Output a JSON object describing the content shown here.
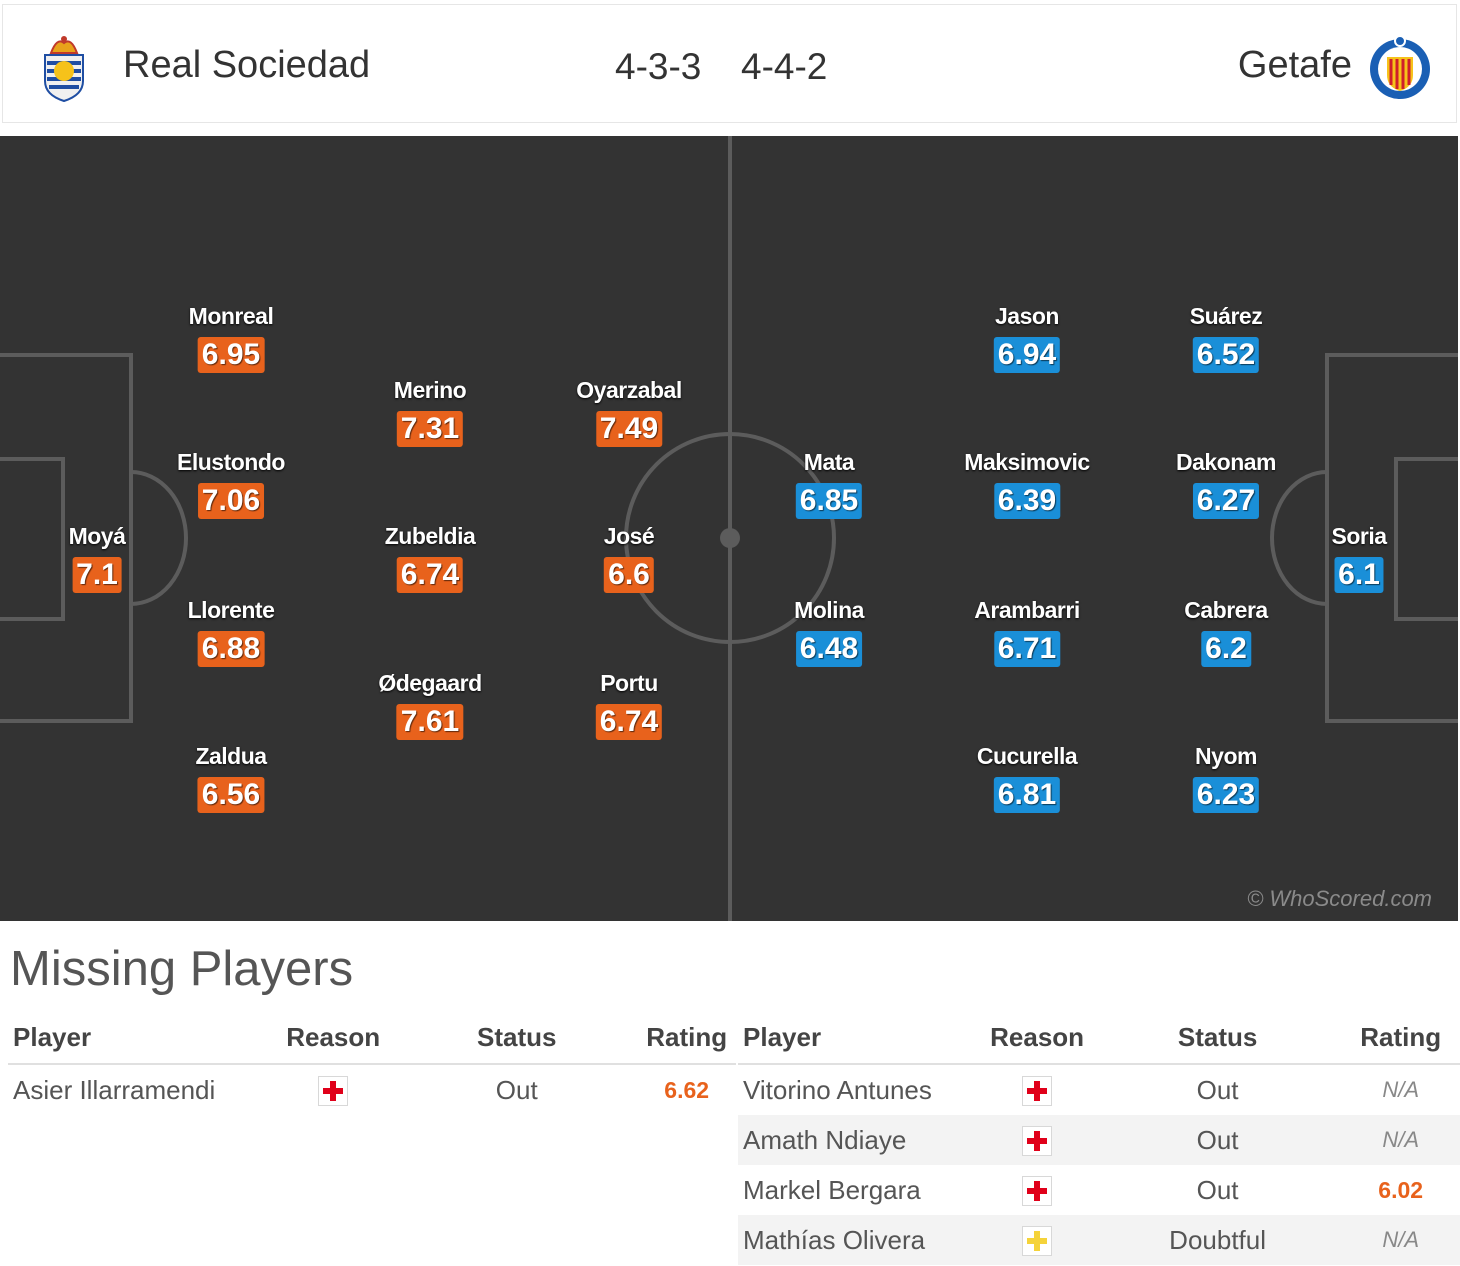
{
  "header": {
    "home_team": "Real Sociedad",
    "away_team": "Getafe",
    "home_formation": "4-3-3",
    "away_formation": "4-4-2",
    "home_crest_icon": "real-sociedad-crest-icon",
    "away_crest_icon": "getafe-crest-icon"
  },
  "colors": {
    "home": "#e8621c",
    "away": "#1a8fd8",
    "pitch": "#333333",
    "injury": "#e0001a",
    "doubtful": "#f5d33a"
  },
  "home_players": [
    {
      "name": "Monreal",
      "rating": "6.95"
    },
    {
      "name": "Elustondo",
      "rating": "7.06"
    },
    {
      "name": "Llorente",
      "rating": "6.88"
    },
    {
      "name": "Zaldua",
      "rating": "6.56"
    },
    {
      "name": "Moyá",
      "rating": "7.1"
    },
    {
      "name": "Merino",
      "rating": "7.31"
    },
    {
      "name": "Zubeldia",
      "rating": "6.74"
    },
    {
      "name": "Ødegaard",
      "rating": "7.61"
    },
    {
      "name": "Oyarzabal",
      "rating": "7.49"
    },
    {
      "name": "José",
      "rating": "6.6"
    },
    {
      "name": "Portu",
      "rating": "6.74"
    }
  ],
  "away_players": [
    {
      "name": "Jason",
      "rating": "6.94"
    },
    {
      "name": "Suárez",
      "rating": "6.52"
    },
    {
      "name": "Mata",
      "rating": "6.85"
    },
    {
      "name": "Maksimovic",
      "rating": "6.39"
    },
    {
      "name": "Dakonam",
      "rating": "6.27"
    },
    {
      "name": "Molina",
      "rating": "6.48"
    },
    {
      "name": "Arambarri",
      "rating": "6.71"
    },
    {
      "name": "Cabrera",
      "rating": "6.2"
    },
    {
      "name": "Cucurella",
      "rating": "6.81"
    },
    {
      "name": "Nyom",
      "rating": "6.23"
    },
    {
      "name": "Soria",
      "rating": "6.1"
    }
  ],
  "watermark": "© WhoScored.com",
  "missing": {
    "title": "Missing Players",
    "headers": {
      "player": "Player",
      "reason": "Reason",
      "status": "Status",
      "rating": "Rating"
    },
    "home": [
      {
        "player": "Asier Illarramendi",
        "reason_icon": "injury-cross-icon",
        "status": "Out",
        "rating": "6.62"
      }
    ],
    "away": [
      {
        "player": "Vitorino Antunes",
        "reason_icon": "injury-cross-icon",
        "status": "Out",
        "rating": "N/A"
      },
      {
        "player": "Amath Ndiaye",
        "reason_icon": "injury-cross-icon",
        "status": "Out",
        "rating": "N/A"
      },
      {
        "player": "Markel Bergara",
        "reason_icon": "injury-cross-icon",
        "status": "Out",
        "rating": "6.02"
      },
      {
        "player": "Mathías Olivera",
        "reason_icon": "doubtful-cross-icon",
        "status": "Doubtful",
        "rating": "N/A"
      }
    ]
  }
}
